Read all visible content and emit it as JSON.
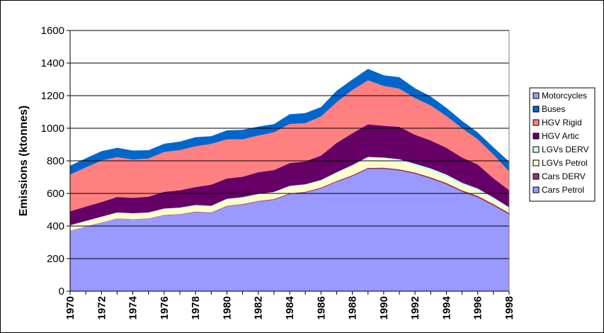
{
  "chart_data": {
    "type": "area",
    "stacked": true,
    "title": "",
    "xlabel": "",
    "ylabel": "Emissions (ktonnes)",
    "ylim": [
      0,
      1600
    ],
    "yticks": [
      "0",
      "200",
      "400",
      "600",
      "800",
      "1000",
      "1200",
      "1400",
      "1600"
    ],
    "xticks": [
      "1970",
      "1972",
      "1974",
      "1976",
      "1978",
      "1980",
      "1982",
      "1984",
      "1986",
      "1988",
      "1990",
      "1992",
      "1994",
      "1996",
      "1998"
    ],
    "x": [
      1970,
      1971,
      1972,
      1973,
      1974,
      1975,
      1976,
      1977,
      1978,
      1979,
      1980,
      1981,
      1982,
      1983,
      1984,
      1985,
      1986,
      1987,
      1988,
      1989,
      1990,
      1991,
      1992,
      1993,
      1994,
      1995,
      1996,
      1997,
      1998
    ],
    "grid": "horizontal",
    "legend_position": "right",
    "series": [
      {
        "name": "Cars Petrol",
        "color": "#9999ff",
        "values": [
          370,
          395,
          420,
          445,
          440,
          445,
          465,
          470,
          485,
          480,
          520,
          530,
          550,
          560,
          595,
          605,
          630,
          670,
          705,
          750,
          750,
          740,
          720,
          690,
          655,
          610,
          575,
          525,
          470
        ]
      },
      {
        "name": "Cars DERV",
        "color": "#993366",
        "values": [
          2,
          2,
          2,
          2,
          2,
          2,
          3,
          3,
          3,
          3,
          4,
          4,
          4,
          5,
          5,
          5,
          6,
          6,
          7,
          7,
          8,
          8,
          8,
          9,
          9,
          9,
          10,
          10,
          10
        ]
      },
      {
        "name": "LGVs Petrol",
        "color": "#ffffcc",
        "values": [
          30,
          31,
          32,
          33,
          33,
          33,
          35,
          36,
          37,
          37,
          38,
          38,
          38,
          39,
          40,
          40,
          40,
          48,
          55,
          60,
          55,
          50,
          40,
          38,
          34,
          30,
          28,
          24,
          20
        ]
      },
      {
        "name": "LGVs DERV",
        "color": "#ccffff",
        "values": [
          3,
          3,
          3,
          3,
          3,
          3,
          4,
          4,
          4,
          4,
          5,
          5,
          5,
          5,
          6,
          6,
          6,
          6,
          7,
          7,
          7,
          12,
          14,
          16,
          18,
          16,
          17,
          16,
          15
        ]
      },
      {
        "name": "HGV Artic",
        "color": "#660066",
        "values": [
          85,
          88,
          90,
          95,
          95,
          97,
          103,
          106,
          110,
          130,
          125,
          125,
          133,
          134,
          140,
          140,
          150,
          180,
          195,
          200,
          195,
          198,
          178,
          172,
          164,
          155,
          147,
          118,
          105
        ]
      },
      {
        "name": "HGV Rigid",
        "color": "#ff8080",
        "values": [
          225,
          240,
          255,
          245,
          235,
          234,
          245,
          247,
          250,
          250,
          240,
          230,
          225,
          232,
          240,
          235,
          240,
          250,
          265,
          270,
          245,
          235,
          225,
          215,
          195,
          180,
          155,
          145,
          115
        ]
      },
      {
        "name": "Buses",
        "color": "#0066cc",
        "values": [
          55,
          56,
          57,
          57,
          55,
          51,
          50,
          52,
          56,
          47,
          55,
          58,
          55,
          50,
          60,
          62,
          58,
          70,
          65,
          70,
          65,
          70,
          60,
          55,
          50,
          45,
          42,
          45,
          60
        ]
      },
      {
        "name": "Motorcycles",
        "color": "#9999ff",
        "values": [
          0,
          0,
          0,
          0,
          0,
          0,
          0,
          0,
          0,
          0,
          0,
          0,
          0,
          0,
          0,
          0,
          0,
          0,
          0,
          0,
          0,
          0,
          0,
          0,
          0,
          0,
          0,
          0,
          0
        ]
      }
    ],
    "legend_order": [
      "Motorcycles",
      "Buses",
      "HGV Rigid",
      "HGV Artic",
      "LGVs DERV",
      "LGVs Petrol",
      "Cars DERV",
      "Cars Petrol"
    ]
  }
}
